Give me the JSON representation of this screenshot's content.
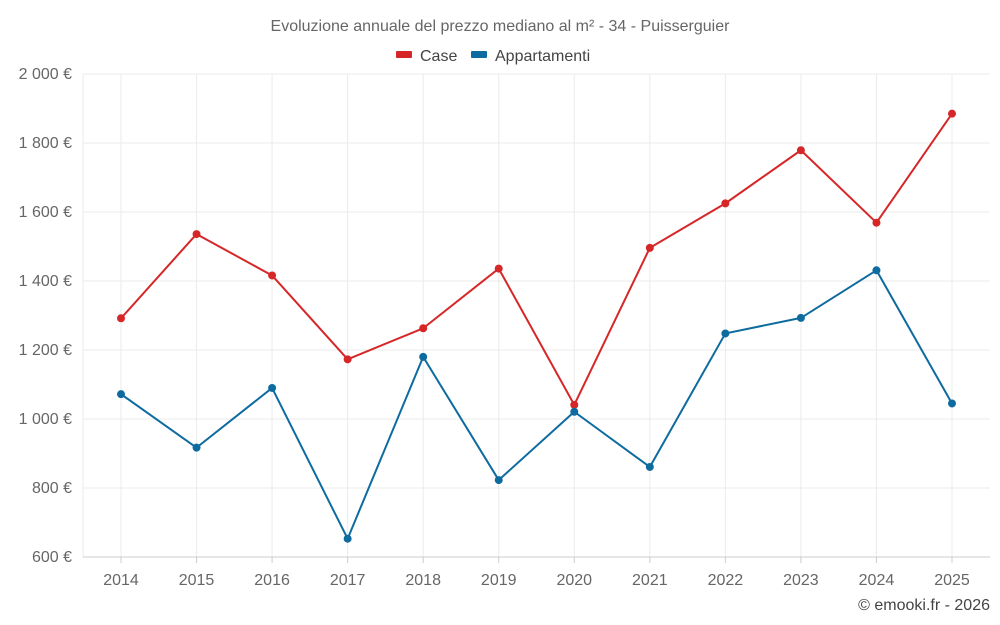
{
  "chart_data": {
    "type": "line",
    "title": "Evoluzione annuale del prezzo mediano al m² - 34 - Puisserguier",
    "categories": [
      "2014",
      "2015",
      "2016",
      "2017",
      "2018",
      "2019",
      "2020",
      "2021",
      "2022",
      "2023",
      "2024",
      "2025"
    ],
    "series": [
      {
        "name": "Case",
        "color": "#d62728",
        "values": [
          1292,
          1536,
          1416,
          1173,
          1263,
          1436,
          1041,
          1496,
          1625,
          1779,
          1569,
          1885
        ]
      },
      {
        "name": "Appartamenti",
        "color": "#0e6ba0",
        "values": [
          1072,
          917,
          1090,
          653,
          1180,
          823,
          1021,
          861,
          1248,
          1293,
          1431,
          1045
        ]
      }
    ],
    "ylim": [
      600,
      2000
    ],
    "yticks": [
      600,
      800,
      1000,
      1200,
      1400,
      1600,
      1800,
      2000
    ],
    "ytick_labels": [
      "600 €",
      "800 €",
      "1 000 €",
      "1 200 €",
      "1 400 €",
      "1 600 €",
      "1 800 €",
      "2 000 €"
    ],
    "xlabel": "",
    "ylabel": "",
    "grid": true,
    "legend_position": "top-center",
    "credit": "© emooki.fr - 2026"
  }
}
